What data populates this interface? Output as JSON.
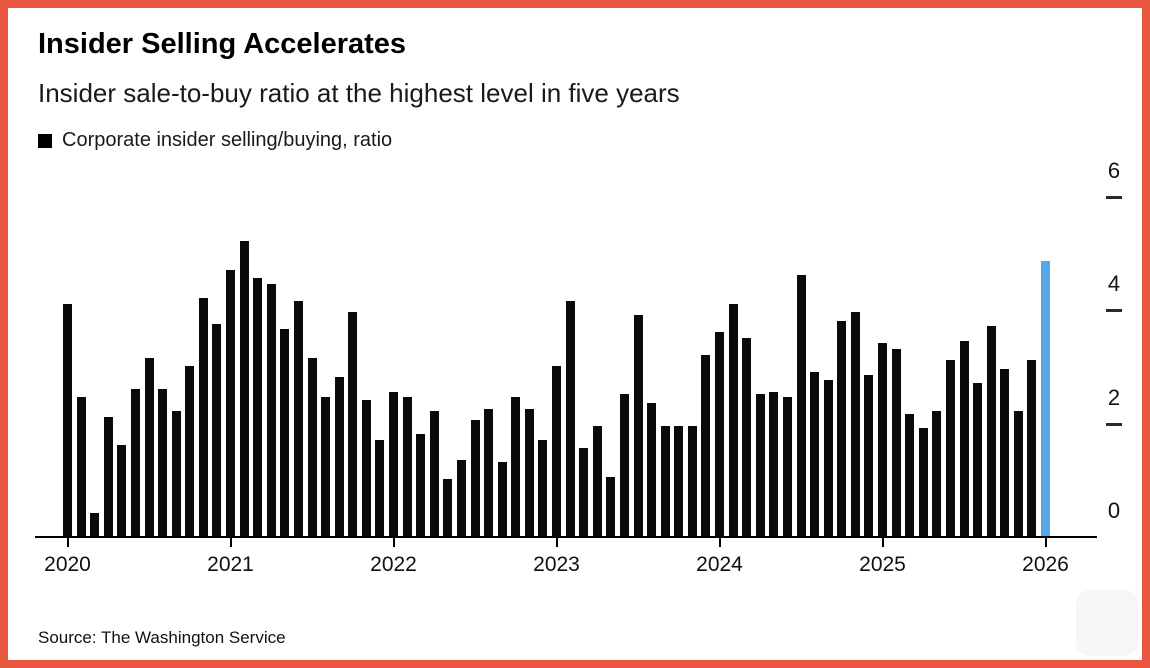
{
  "header": {
    "title": "Insider Selling Accelerates",
    "subtitle": "Insider sale-to-buy ratio at the highest level in five years"
  },
  "legend": {
    "swatch_color": "#000000",
    "label": "Corporate insider selling/buying, ratio"
  },
  "source": "Source: The Washington Service",
  "colors": {
    "frame": "#e85640",
    "bar": "#0a0a0a",
    "highlight_bar": "#54a7e8",
    "axis": "#000000"
  },
  "chart_data": {
    "type": "bar",
    "title": "Insider Selling Accelerates",
    "series_name": "Corporate insider selling/buying, ratio",
    "frequency": "monthly",
    "x_start": "2020-01",
    "x_end": "2026-01",
    "values": [
      4.1,
      2.45,
      0.4,
      2.1,
      1.6,
      2.6,
      3.15,
      2.6,
      2.2,
      3.0,
      4.2,
      3.75,
      4.7,
      5.2,
      4.55,
      4.45,
      3.65,
      4.15,
      3.15,
      2.45,
      2.8,
      3.95,
      2.4,
      1.7,
      2.55,
      2.45,
      1.8,
      2.2,
      1.0,
      1.35,
      2.05,
      2.25,
      1.3,
      2.45,
      2.25,
      1.7,
      3.0,
      4.15,
      1.55,
      1.95,
      1.05,
      2.5,
      3.9,
      2.35,
      1.95,
      1.95,
      1.95,
      3.2,
      3.6,
      4.1,
      3.5,
      2.5,
      2.55,
      2.45,
      4.6,
      2.9,
      2.75,
      3.8,
      3.95,
      2.85,
      3.4,
      3.3,
      2.15,
      1.9,
      2.2,
      3.1,
      3.45,
      2.7,
      3.7,
      2.95,
      2.2,
      3.1,
      4.85
    ],
    "highlight": {
      "index": 72,
      "x": "2026-01",
      "value": 4.85,
      "color": "#54a7e8"
    },
    "ylim": [
      0,
      6
    ],
    "y_ticks": [
      0,
      2,
      4,
      6
    ],
    "y_axis_position": "right",
    "x_tick_labels": [
      "2020",
      "2021",
      "2022",
      "2023",
      "2024",
      "2025",
      "2026"
    ],
    "x_tick_month_indices": [
      0,
      12,
      24,
      36,
      48,
      60,
      72
    ],
    "grid": false,
    "legend_position": "top-left"
  }
}
